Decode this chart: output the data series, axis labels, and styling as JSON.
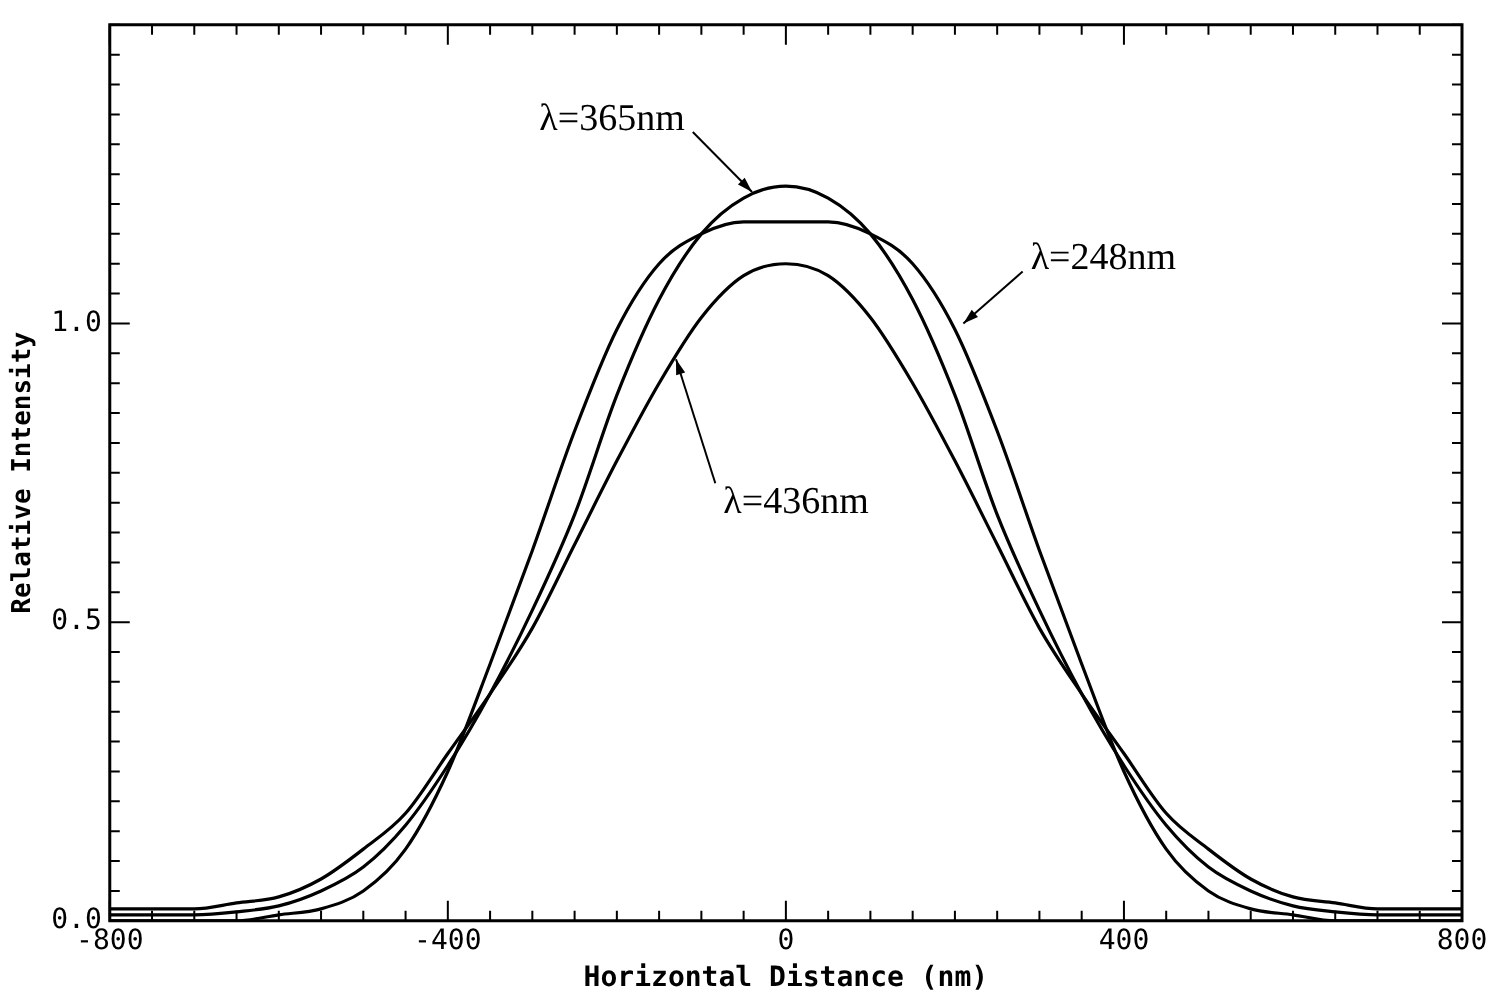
{
  "chart_data": {
    "type": "line",
    "xlabel": "Horizontal Distance (nm)",
    "ylabel": "Relative Intensity",
    "x": [
      -800,
      -700,
      -650,
      -600,
      -550,
      -500,
      -450,
      -400,
      -350,
      -300,
      -250,
      -200,
      -150,
      -100,
      -50,
      0,
      50,
      100,
      150,
      200,
      250,
      300,
      350,
      400,
      450,
      500,
      550,
      600,
      650,
      700,
      800
    ],
    "series": [
      {
        "color": "#000000",
        "values": [
          0.02,
          0.02,
          0.03,
          0.04,
          0.07,
          0.12,
          0.18,
          0.28,
          0.38,
          0.49,
          0.63,
          0.77,
          0.9,
          1.01,
          1.08,
          1.1,
          1.08,
          1.01,
          0.9,
          0.77,
          0.63,
          0.49,
          0.38,
          0.28,
          0.18,
          0.12,
          0.07,
          0.04,
          0.03,
          0.02,
          0.02
        ]
      },
      {
        "color": "#000000",
        "values": [
          0.01,
          0.01,
          0.015,
          0.025,
          0.05,
          0.09,
          0.16,
          0.26,
          0.38,
          0.52,
          0.68,
          0.88,
          1.04,
          1.15,
          1.21,
          1.23,
          1.21,
          1.15,
          1.04,
          0.88,
          0.68,
          0.52,
          0.38,
          0.26,
          0.16,
          0.09,
          0.05,
          0.025,
          0.015,
          0.01,
          0.01
        ]
      },
      {
        "color": "#000000",
        "values": [
          0.0,
          0.0,
          0.0,
          0.01,
          0.02,
          0.05,
          0.12,
          0.25,
          0.43,
          0.62,
          0.82,
          0.99,
          1.1,
          1.15,
          1.17,
          1.17,
          1.17,
          1.15,
          1.1,
          0.99,
          0.82,
          0.62,
          0.43,
          0.25,
          0.12,
          0.05,
          0.02,
          0.01,
          0.0,
          0.0,
          0.0
        ]
      }
    ],
    "xlim": [
      -800,
      800
    ],
    "xticks": [
      -800,
      {
        "value": -750,
        "label": null
      },
      {
        "value": -700,
        "label": null
      },
      {
        "value": -650,
        "label": null
      },
      {
        "value": -600,
        "label": null
      },
      {
        "value": -550,
        "label": null
      },
      {
        "value": -500,
        "label": null
      },
      {
        "value": -450,
        "label": null
      },
      -400,
      {
        "value": -350,
        "label": null
      },
      {
        "value": -300,
        "label": null
      },
      {
        "value": -250,
        "label": null
      },
      {
        "value": -200,
        "label": null
      },
      {
        "value": -150,
        "label": null
      },
      {
        "value": -100,
        "label": null
      },
      {
        "value": -50,
        "label": null
      },
      0,
      {
        "value": 50,
        "label": null
      },
      {
        "value": 100,
        "label": null
      },
      {
        "value": 150,
        "label": null
      },
      {
        "value": 200,
        "label": null
      },
      {
        "value": 250,
        "label": null
      },
      {
        "value": 300,
        "label": null
      },
      {
        "value": 350,
        "label": null
      },
      400,
      {
        "value": 450,
        "label": null
      },
      {
        "value": 500,
        "label": null
      },
      {
        "value": 550,
        "label": null
      },
      {
        "value": 600,
        "label": null
      },
      {
        "value": 650,
        "label": null
      },
      {
        "value": 700,
        "label": null
      },
      {
        "value": 750,
        "label": null
      },
      800
    ],
    "ylim": [
      0,
      1.5
    ],
    "yticks": [
      {
        "value": 0,
        "label": "0.0"
      },
      {
        "value": 0.05,
        "label": null
      },
      {
        "value": 0.1,
        "label": null
      },
      {
        "value": 0.15,
        "label": null
      },
      {
        "value": 0.2,
        "label": null
      },
      {
        "value": 0.25,
        "label": null
      },
      {
        "value": 0.3,
        "label": null
      },
      {
        "value": 0.35,
        "label": null
      },
      {
        "value": 0.4,
        "label": null
      },
      {
        "value": 0.45,
        "label": null
      },
      0.5,
      {
        "value": 0.55,
        "label": null
      },
      {
        "value": 0.6,
        "label": null
      },
      {
        "value": 0.65,
        "label": null
      },
      {
        "value": 0.7,
        "label": null
      },
      {
        "value": 0.75,
        "label": null
      },
      {
        "value": 0.8,
        "label": null
      },
      {
        "value": 0.85,
        "label": null
      },
      {
        "value": 0.9,
        "label": null
      },
      {
        "value": 0.95,
        "label": null
      },
      {
        "value": 1,
        "label": "1.0"
      },
      {
        "value": 1.05,
        "label": null
      },
      {
        "value": 1.1,
        "label": null
      },
      {
        "value": 1.15,
        "label": null
      },
      {
        "value": 1.2,
        "label": null
      },
      {
        "value": 1.25,
        "label": null
      },
      {
        "value": 1.3,
        "label": null
      },
      {
        "value": 1.35,
        "label": null
      },
      {
        "value": 1.4,
        "label": null
      },
      {
        "value": 1.45,
        "label": null
      },
      {
        "value": 1.5,
        "label": null
      }
    ],
    "annotations": [
      {
        "text": "λ=365nm",
        "x": -40,
        "y": 1.22
      },
      {
        "text": "λ=248nm",
        "x": 210,
        "y": 1.0
      },
      {
        "text": "λ=436nm",
        "x": -130,
        "y": 0.94
      }
    ],
    "marker": "none",
    "line_style": "solid",
    "grid": false,
    "legend": false
  }
}
